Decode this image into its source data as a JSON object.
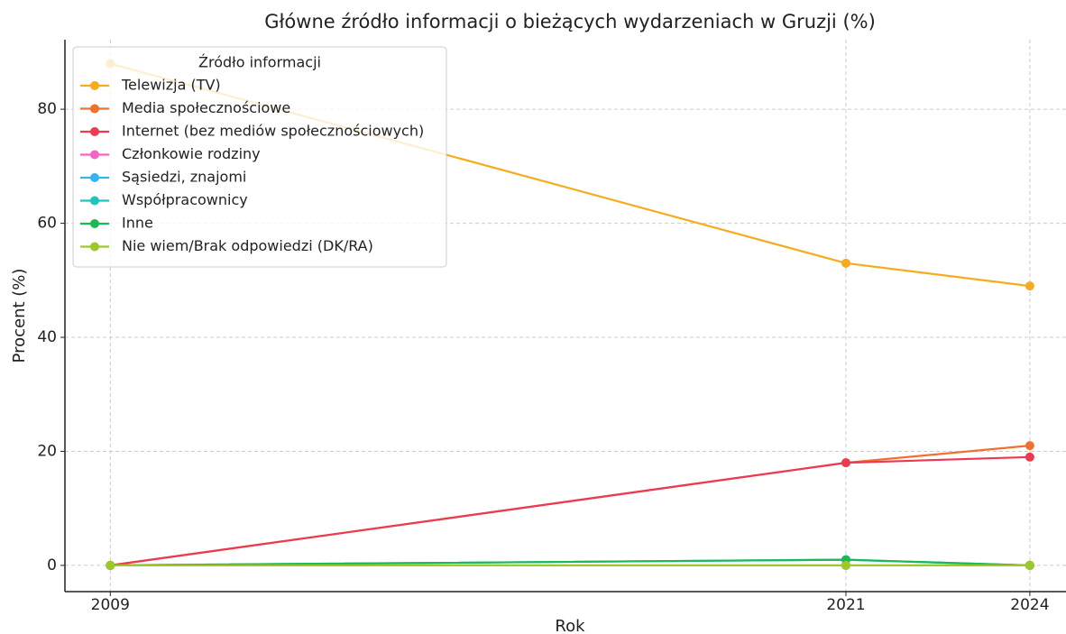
{
  "chart_data": {
    "type": "line",
    "title": "Główne źródło informacji o bieżących wydarzeniach w Gruzji (%)",
    "x_label": "Rok",
    "y_label": "Procent (%)",
    "x": [
      2009,
      2021,
      2024
    ],
    "xlim": [
      2008.26,
      2024.59
    ],
    "xticks": [
      2009,
      2021,
      2024
    ],
    "ylim": [
      -4.6,
      92.2
    ],
    "yticks": [
      0,
      20,
      40,
      60,
      80
    ],
    "grid": true,
    "legend": "upper left",
    "legend_title": "Źródło informacji",
    "series": [
      {
        "name": "Telewizja (TV)",
        "color": "#f5ac1e",
        "values": [
          88,
          53,
          49
        ]
      },
      {
        "name": "Media społecznościowe",
        "color": "#f07030",
        "values": [
          0,
          18,
          21
        ]
      },
      {
        "name": "Internet (bez mediów społecznościowych)",
        "color": "#eb3a52",
        "values": [
          0,
          18,
          19
        ]
      },
      {
        "name": "Członkowie rodziny",
        "color": "#f564c4",
        "values": [
          0,
          0,
          0
        ]
      },
      {
        "name": "Sąsiedzi, znajomi",
        "color": "#36b4f0",
        "values": [
          0,
          0,
          0
        ]
      },
      {
        "name": "Współpracownicy",
        "color": "#1fc4bc",
        "values": [
          0,
          1,
          0
        ]
      },
      {
        "name": "Inne",
        "color": "#1db856",
        "values": [
          0,
          1,
          0
        ]
      },
      {
        "name": "Nie wiem/Brak odpowiedzi (DK/RA)",
        "color": "#9dc927",
        "values": [
          0,
          0,
          0
        ]
      }
    ]
  }
}
